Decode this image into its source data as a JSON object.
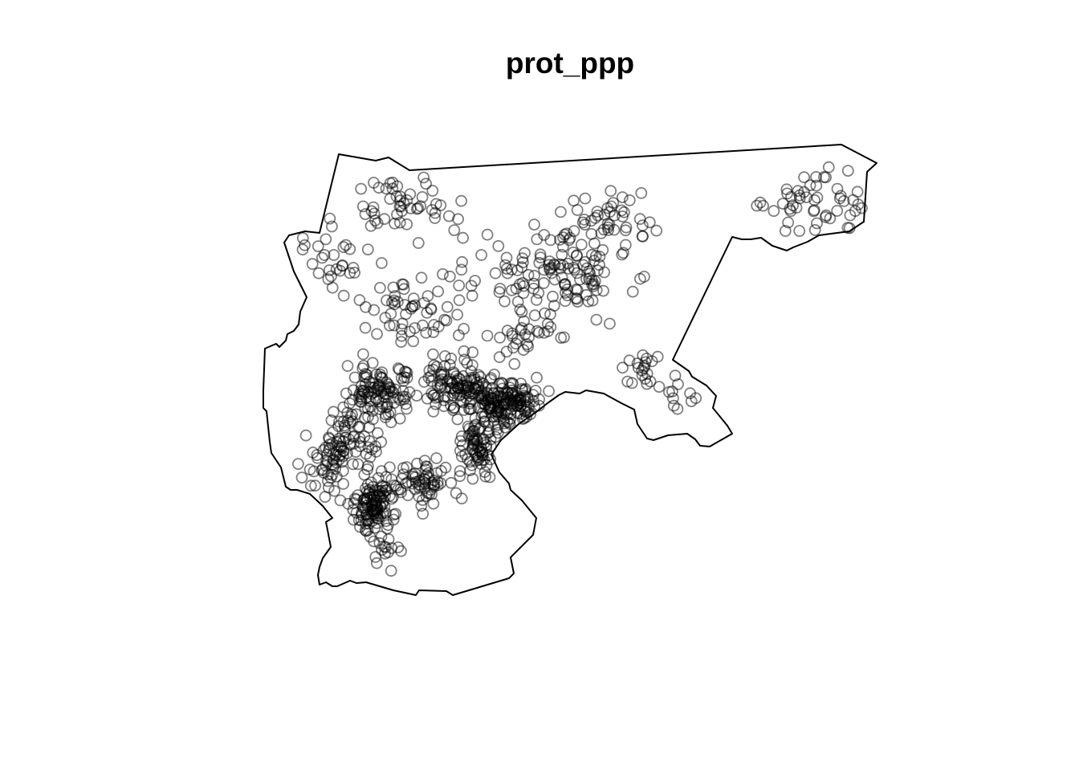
{
  "title": "prot_ppp",
  "colors": {
    "background": "#ffffff",
    "window_stroke": "#000000",
    "point_stroke": "#000000",
    "point_opacity": 0.5
  },
  "chart_data": {
    "type": "scatter",
    "title": "prot_ppp",
    "marker": "open-circle",
    "legend": "none",
    "grid": false,
    "axes": "none"
  }
}
